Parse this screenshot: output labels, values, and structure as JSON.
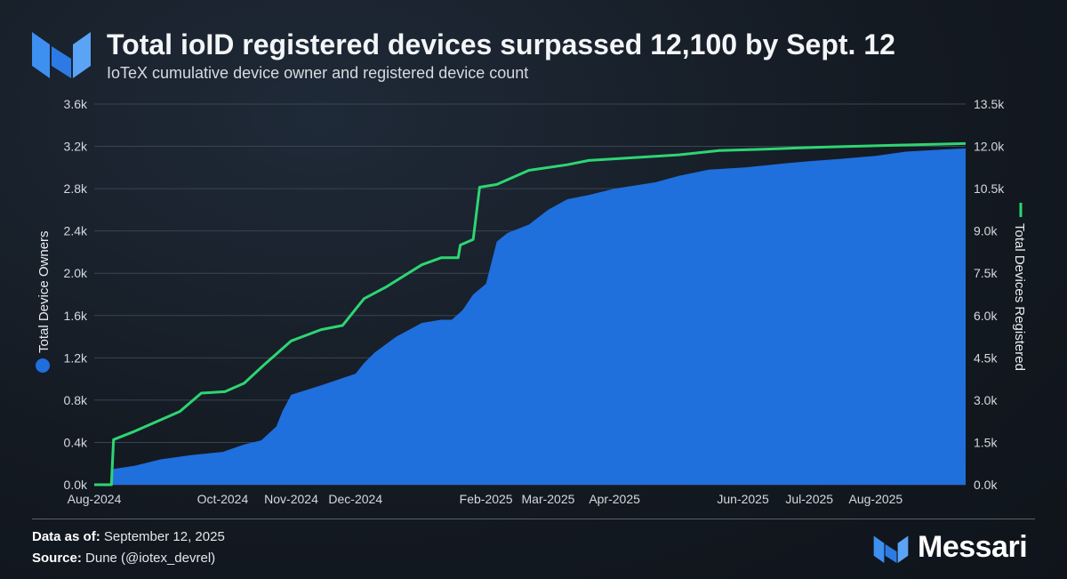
{
  "header": {
    "title": "Total ioID registered devices surpassed 12,100 by Sept. 12",
    "subtitle": "IoTeX cumulative device owner and registered device count"
  },
  "footer": {
    "data_as_of_label": "Data as of:",
    "data_as_of_value": "September 12, 2025",
    "source_label": "Source:",
    "source_value": "Dune (@iotex_devrel)",
    "brand": "Messari"
  },
  "colors": {
    "owners_fill": "#1f6fdd",
    "devices_line": "#2ed573",
    "grid": "#3a4450",
    "tick_text": "#d4d9df"
  },
  "chart_data": {
    "type": "area",
    "x_type": "date",
    "x_ticks": [
      "Aug-2024",
      "Oct-2024",
      "Nov-2024",
      "Dec-2024",
      "Feb-2025",
      "Mar-2025",
      "Apr-2025",
      "Jun-2025",
      "Jul-2025",
      "Aug-2025"
    ],
    "x_tick_dates": [
      "2024-08-01",
      "2024-09-30",
      "2024-11-01",
      "2024-12-01",
      "2025-01-31",
      "2025-03-01",
      "2025-04-01",
      "2025-05-31",
      "2025-07-01",
      "2025-08-01"
    ],
    "xlim": [
      "2024-08-01",
      "2025-09-12"
    ],
    "grid": "horizontal",
    "y_left": {
      "label": "Total Device Owners",
      "ylim": [
        0,
        3600
      ],
      "ticks": [
        "0.0k",
        "0.4k",
        "0.8k",
        "1.2k",
        "1.6k",
        "2.0k",
        "2.4k",
        "2.8k",
        "3.2k",
        "3.6k"
      ]
    },
    "y_right": {
      "label": "Total Devices Registered",
      "ylim": [
        0,
        13500
      ],
      "ticks": [
        "0.0k",
        "1.5k",
        "3.0k",
        "4.5k",
        "6.0k",
        "7.5k",
        "9.0k",
        "10.5k",
        "12.0k",
        "13.5k"
      ]
    },
    "series": [
      {
        "name": "Total Device Owners",
        "type": "area",
        "axis": "left",
        "x": [
          "2024-08-01",
          "2024-08-09",
          "2024-08-10",
          "2024-08-20",
          "2024-09-01",
          "2024-09-15",
          "2024-09-30",
          "2024-10-10",
          "2024-10-18",
          "2024-10-25",
          "2024-10-28",
          "2024-11-01",
          "2024-11-15",
          "2024-12-01",
          "2024-12-05",
          "2024-12-10",
          "2024-12-20",
          "2025-01-01",
          "2025-01-10",
          "2025-01-15",
          "2025-01-20",
          "2025-01-25",
          "2025-01-31",
          "2025-02-05",
          "2025-02-10",
          "2025-02-20",
          "2025-03-01",
          "2025-03-10",
          "2025-03-20",
          "2025-04-01",
          "2025-04-20",
          "2025-05-01",
          "2025-05-15",
          "2025-06-01",
          "2025-06-20",
          "2025-07-01",
          "2025-07-15",
          "2025-08-01",
          "2025-08-15",
          "2025-09-01",
          "2025-09-12"
        ],
        "y": [
          0,
          0,
          150,
          180,
          240,
          280,
          310,
          380,
          420,
          550,
          700,
          850,
          940,
          1050,
          1150,
          1250,
          1400,
          1530,
          1560,
          1560,
          1650,
          1800,
          1900,
          2300,
          2380,
          2460,
          2600,
          2700,
          2740,
          2800,
          2860,
          2920,
          2980,
          3000,
          3040,
          3060,
          3080,
          3110,
          3150,
          3170,
          3180
        ]
      },
      {
        "name": "Total Devices Registered",
        "type": "line",
        "axis": "right",
        "x": [
          "2024-08-01",
          "2024-08-09",
          "2024-08-10",
          "2024-08-20",
          "2024-09-01",
          "2024-09-10",
          "2024-09-20",
          "2024-10-01",
          "2024-10-10",
          "2024-10-20",
          "2024-11-01",
          "2024-11-15",
          "2024-11-25",
          "2024-12-05",
          "2024-12-15",
          "2025-01-01",
          "2025-01-10",
          "2025-01-18",
          "2025-01-19",
          "2025-01-25",
          "2025-01-28",
          "2025-02-05",
          "2025-02-20",
          "2025-03-10",
          "2025-03-20",
          "2025-04-10",
          "2025-05-01",
          "2025-05-20",
          "2025-06-10",
          "2025-07-10",
          "2025-08-15",
          "2025-09-12"
        ],
        "y": [
          0,
          0,
          1600,
          1900,
          2300,
          2600,
          3250,
          3300,
          3600,
          4300,
          5100,
          5500,
          5650,
          6600,
          7000,
          7800,
          8050,
          8050,
          8500,
          8700,
          10550,
          10650,
          11150,
          11350,
          11500,
          11600,
          11700,
          11850,
          11900,
          11980,
          12050,
          12100
        ]
      }
    ]
  }
}
